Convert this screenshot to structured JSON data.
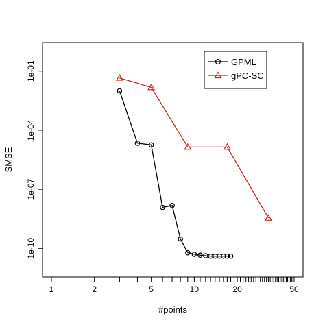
{
  "chart_data": {
    "type": "line",
    "title": "",
    "xlabel": "#points",
    "ylabel": "SMSE",
    "x_scale": "log",
    "y_scale": "log",
    "xlim": [
      1,
      50
    ],
    "ylim": [
      1e-11,
      1
    ],
    "x_tick_labels": [
      {
        "value": 1,
        "label": "1"
      },
      {
        "value": 2,
        "label": "2"
      },
      {
        "value": 5,
        "label": "5"
      },
      {
        "value": 10,
        "label": "10"
      },
      {
        "value": 20,
        "label": "20"
      },
      {
        "value": 50,
        "label": "50"
      }
    ],
    "x_minor_ticks": [
      3,
      4,
      6,
      7,
      8,
      9,
      11,
      12,
      13,
      14,
      15,
      16,
      17,
      18,
      19,
      21,
      22,
      23,
      24,
      25,
      26,
      27,
      28,
      29,
      30,
      31,
      32,
      33,
      34,
      35,
      36,
      37,
      38,
      39,
      40,
      41,
      42,
      43,
      44,
      45,
      46,
      47,
      48,
      49
    ],
    "y_tick_labels": [
      {
        "value": 1e-10,
        "label": "1e-10"
      },
      {
        "value": 1e-07,
        "label": "1e-07"
      },
      {
        "value": 0.0001,
        "label": "1e-04"
      },
      {
        "value": 0.1,
        "label": "1e-01"
      }
    ],
    "grid": false,
    "legend_position": "top-right",
    "series": [
      {
        "name": "GPML",
        "color": "#000000",
        "marker": "circle",
        "x": [
          3,
          4,
          5,
          6,
          7,
          8,
          9,
          10,
          11,
          12,
          13,
          14,
          15,
          16,
          17,
          18
        ],
        "y": [
          0.01,
          2.2e-05,
          1.8e-05,
          1.2e-08,
          1.5e-08,
          3e-10,
          6e-11,
          5e-11,
          4.5e-11,
          4.2e-11,
          4e-11,
          4e-11,
          4e-11,
          4e-11,
          4e-11,
          4e-11
        ]
      },
      {
        "name": "gPC-SC",
        "color": "#cc2222",
        "marker": "triangle",
        "x": [
          3,
          5,
          9,
          17,
          33
        ],
        "y": [
          0.045,
          0.015,
          1.4e-05,
          1.4e-05,
          3.5e-09
        ]
      }
    ]
  }
}
